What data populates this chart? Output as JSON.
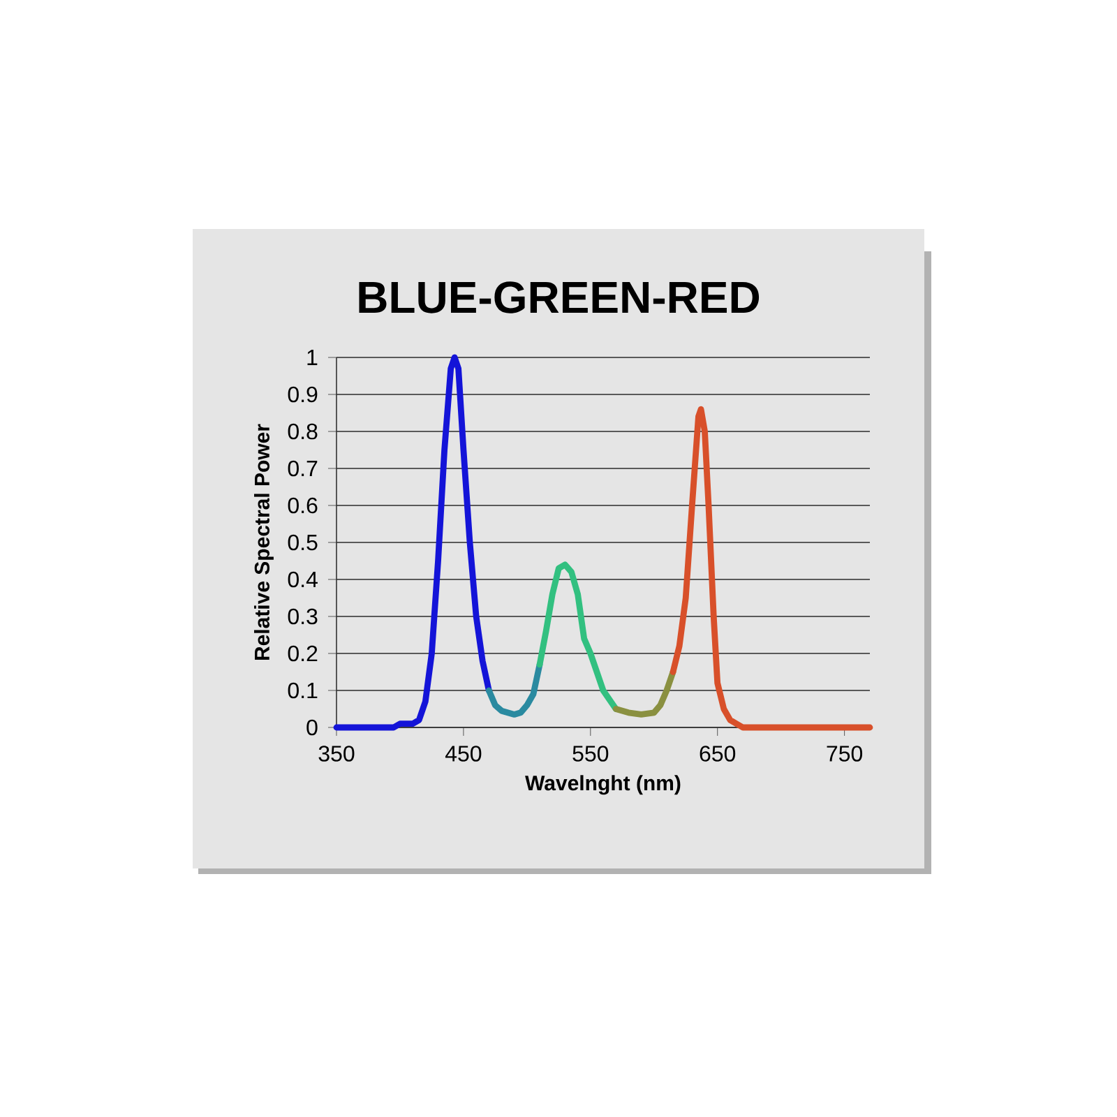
{
  "chart_data": {
    "type": "line",
    "title": "BLUE-GREEN-RED",
    "xlabel": "Wavelnght (nm)",
    "ylabel": "Relative Spectral Power",
    "xlim": [
      350,
      770
    ],
    "xticks": [
      350,
      450,
      550,
      650,
      750
    ],
    "ylim": [
      0,
      1
    ],
    "yticks": [
      0,
      0.1,
      0.2,
      0.3,
      0.4,
      0.5,
      0.6,
      0.7,
      0.8,
      0.9,
      1
    ],
    "grid": "y",
    "marker": "none",
    "line_style": "solid",
    "series": [
      {
        "color": "#1414d8",
        "x": [
          350,
          395,
          400,
          410,
          415,
          420,
          425,
          430,
          435,
          440,
          443,
          446,
          450,
          455,
          460,
          465,
          470
        ],
        "values": [
          0,
          0,
          0.01,
          0.01,
          0.02,
          0.07,
          0.2,
          0.45,
          0.75,
          0.97,
          1.0,
          0.97,
          0.75,
          0.5,
          0.3,
          0.18,
          0.1
        ]
      },
      {
        "color": "#2a8aa0",
        "x": [
          470,
          475,
          480,
          490,
          495,
          500,
          505,
          510
        ],
        "values": [
          0.1,
          0.06,
          0.045,
          0.035,
          0.04,
          0.06,
          0.09,
          0.17
        ]
      },
      {
        "color": "#32c080",
        "x": [
          510,
          515,
          520,
          525,
          530,
          535,
          540,
          545,
          550,
          555,
          560,
          570
        ],
        "values": [
          0.17,
          0.26,
          0.36,
          0.43,
          0.44,
          0.42,
          0.36,
          0.24,
          0.2,
          0.15,
          0.1,
          0.05
        ]
      },
      {
        "color": "#8a9040",
        "x": [
          570,
          580,
          590,
          600,
          605,
          610,
          615
        ],
        "values": [
          0.05,
          0.04,
          0.035,
          0.04,
          0.06,
          0.1,
          0.15
        ]
      },
      {
        "color": "#d8502a",
        "x": [
          615,
          620,
          625,
          630,
          635,
          637,
          640,
          643,
          647,
          650,
          655,
          660,
          665,
          670,
          770
        ],
        "values": [
          0.15,
          0.22,
          0.35,
          0.6,
          0.84,
          0.86,
          0.8,
          0.6,
          0.3,
          0.12,
          0.05,
          0.02,
          0.01,
          0,
          0
        ]
      }
    ]
  }
}
